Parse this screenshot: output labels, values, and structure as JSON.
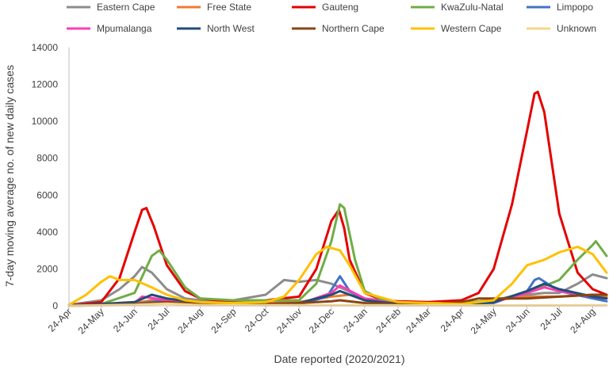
{
  "chart_data": {
    "type": "line",
    "title": "",
    "xlabel": "Date reported (2020/2021)",
    "ylabel": "7-day moving average no. of new daily cases",
    "ylim": [
      0,
      14000
    ],
    "yticks": [
      0,
      2000,
      4000,
      6000,
      8000,
      10000,
      12000,
      14000
    ],
    "xlim": [
      "2020-04-24",
      "2021-09-06"
    ],
    "x_ticks": [
      {
        "date": "2020-04-24",
        "label": "24-Apr"
      },
      {
        "date": "2020-05-24",
        "label": "24-May"
      },
      {
        "date": "2020-06-24",
        "label": "24-Jun"
      },
      {
        "date": "2020-07-24",
        "label": "24-Jul"
      },
      {
        "date": "2020-08-24",
        "label": "24-Aug"
      },
      {
        "date": "2020-09-24",
        "label": "24-Sep"
      },
      {
        "date": "2020-10-24",
        "label": "24-Oct"
      },
      {
        "date": "2020-11-24",
        "label": "24-Nov"
      },
      {
        "date": "2020-12-24",
        "label": "24-Dec"
      },
      {
        "date": "2021-01-24",
        "label": "24-Jan"
      },
      {
        "date": "2021-02-24",
        "label": "24-Feb"
      },
      {
        "date": "2021-03-24",
        "label": "24-Mar"
      },
      {
        "date": "2021-04-24",
        "label": "24-Apr"
      },
      {
        "date": "2021-05-24",
        "label": "24-May"
      },
      {
        "date": "2021-06-24",
        "label": "24-Jun"
      },
      {
        "date": "2021-07-24",
        "label": "24-Jul"
      },
      {
        "date": "2021-08-24",
        "label": "24-Aug"
      }
    ],
    "grid": false,
    "legend_position": "top",
    "series": [
      {
        "name": "Eastern Cape",
        "color": "#8c8c8c",
        "x": [
          "2020-04-24",
          "2020-05-24",
          "2020-06-10",
          "2020-06-24",
          "2020-07-01",
          "2020-07-10",
          "2020-07-24",
          "2020-08-10",
          "2020-08-24",
          "2020-09-24",
          "2020-10-24",
          "2020-11-10",
          "2020-11-24",
          "2020-12-10",
          "2020-12-24",
          "2021-01-05",
          "2021-01-24",
          "2021-02-24",
          "2021-03-24",
          "2021-04-24",
          "2021-05-24",
          "2021-06-24",
          "2021-07-10",
          "2021-07-24",
          "2021-08-10",
          "2021-08-24",
          "2021-09-06"
        ],
        "y": [
          50,
          300,
          900,
          1600,
          2100,
          1800,
          900,
          400,
          300,
          300,
          600,
          1400,
          1300,
          1400,
          1200,
          900,
          400,
          200,
          150,
          150,
          300,
          600,
          700,
          700,
          1200,
          1700,
          1500
        ]
      },
      {
        "name": "Free State",
        "color": "#ed7d31",
        "x": [
          "2020-04-24",
          "2020-06-10",
          "2020-06-24",
          "2020-07-10",
          "2020-07-24",
          "2020-08-24",
          "2020-09-24",
          "2020-10-24",
          "2020-11-24",
          "2020-12-24",
          "2021-01-10",
          "2021-01-24",
          "2021-02-24",
          "2021-03-24",
          "2021-04-24",
          "2021-05-24",
          "2021-06-24",
          "2021-07-24",
          "2021-08-24",
          "2021-09-06"
        ],
        "y": [
          0,
          50,
          150,
          300,
          250,
          100,
          100,
          150,
          200,
          500,
          600,
          300,
          100,
          80,
          150,
          300,
          500,
          500,
          600,
          500
        ]
      },
      {
        "name": "Gauteng",
        "color": "#e50000",
        "x": [
          "2020-04-24",
          "2020-05-24",
          "2020-06-10",
          "2020-06-24",
          "2020-07-01",
          "2020-07-05",
          "2020-07-12",
          "2020-07-24",
          "2020-08-10",
          "2020-08-24",
          "2020-09-24",
          "2020-10-24",
          "2020-11-24",
          "2020-12-10",
          "2020-12-24",
          "2020-12-31",
          "2021-01-05",
          "2021-01-10",
          "2021-01-24",
          "2021-02-10",
          "2021-02-24",
          "2021-03-24",
          "2021-04-24",
          "2021-05-10",
          "2021-05-24",
          "2021-06-10",
          "2021-06-24",
          "2021-07-01",
          "2021-07-04",
          "2021-07-10",
          "2021-07-24",
          "2021-08-10",
          "2021-08-24",
          "2021-09-06"
        ],
        "y": [
          30,
          200,
          1500,
          4000,
          5200,
          5300,
          4300,
          2200,
          800,
          400,
          200,
          300,
          500,
          2000,
          4600,
          5200,
          4200,
          2500,
          700,
          300,
          250,
          200,
          300,
          700,
          2000,
          5500,
          9500,
          11500,
          11600,
          10500,
          5000,
          1800,
          900,
          600
        ]
      },
      {
        "name": "KwaZulu-Natal",
        "color": "#70ad47",
        "x": [
          "2020-04-24",
          "2020-05-24",
          "2020-06-24",
          "2020-07-10",
          "2020-07-17",
          "2020-07-24",
          "2020-08-10",
          "2020-08-24",
          "2020-09-24",
          "2020-10-24",
          "2020-11-24",
          "2020-12-10",
          "2020-12-24",
          "2021-01-01",
          "2021-01-05",
          "2021-01-15",
          "2021-01-24",
          "2021-02-10",
          "2021-02-24",
          "2021-03-24",
          "2021-04-24",
          "2021-05-24",
          "2021-06-24",
          "2021-07-24",
          "2021-08-10",
          "2021-08-24",
          "2021-08-27",
          "2021-09-06"
        ],
        "y": [
          20,
          100,
          700,
          2700,
          3000,
          2500,
          1000,
          400,
          300,
          300,
          300,
          1200,
          3500,
          5500,
          5300,
          2500,
          800,
          300,
          200,
          150,
          150,
          300,
          700,
          1400,
          2500,
          3300,
          3500,
          2700
        ]
      },
      {
        "name": "Limpopo",
        "color": "#4472c4",
        "x": [
          "2020-04-24",
          "2020-06-24",
          "2020-07-24",
          "2020-08-24",
          "2020-09-24",
          "2020-10-24",
          "2020-11-24",
          "2020-12-20",
          "2021-01-01",
          "2021-01-10",
          "2021-01-24",
          "2021-02-24",
          "2021-03-24",
          "2021-04-24",
          "2021-05-24",
          "2021-06-24",
          "2021-07-01",
          "2021-07-05",
          "2021-07-24",
          "2021-08-24",
          "2021-09-06"
        ],
        "y": [
          0,
          100,
          300,
          150,
          60,
          40,
          80,
          500,
          1600,
          800,
          300,
          100,
          50,
          50,
          150,
          800,
          1400,
          1500,
          800,
          400,
          250
        ]
      },
      {
        "name": "Mpumalanga",
        "color": "#ff3cb4",
        "x": [
          "2020-04-24",
          "2020-06-24",
          "2020-07-01",
          "2020-07-24",
          "2020-08-24",
          "2020-09-24",
          "2020-10-24",
          "2020-11-24",
          "2020-12-24",
          "2021-01-01",
          "2021-01-24",
          "2021-02-24",
          "2021-03-24",
          "2021-04-24",
          "2021-05-24",
          "2021-06-24",
          "2021-07-10",
          "2021-07-24",
          "2021-08-24",
          "2021-09-06"
        ],
        "y": [
          0,
          150,
          500,
          300,
          100,
          50,
          50,
          100,
          700,
          1100,
          400,
          100,
          50,
          50,
          200,
          700,
          1000,
          800,
          500,
          400
        ]
      },
      {
        "name": "North West",
        "color": "#1f4e79",
        "x": [
          "2020-04-24",
          "2020-06-24",
          "2020-07-10",
          "2020-07-24",
          "2020-08-24",
          "2020-09-24",
          "2020-10-24",
          "2020-11-24",
          "2020-12-24",
          "2021-01-01",
          "2021-01-24",
          "2021-02-24",
          "2021-03-24",
          "2021-04-24",
          "2021-05-24",
          "2021-06-24",
          "2021-07-10",
          "2021-07-24",
          "2021-08-24",
          "2021-09-06"
        ],
        "y": [
          0,
          200,
          600,
          400,
          150,
          100,
          100,
          150,
          600,
          800,
          300,
          100,
          50,
          50,
          200,
          800,
          1200,
          900,
          500,
          400
        ]
      },
      {
        "name": "Northern Cape",
        "color": "#8b4513",
        "x": [
          "2020-04-24",
          "2020-06-24",
          "2020-07-24",
          "2020-08-24",
          "2020-09-24",
          "2020-10-24",
          "2020-11-24",
          "2020-12-24",
          "2021-01-01",
          "2021-01-24",
          "2021-02-24",
          "2021-03-24",
          "2021-04-24",
          "2021-05-10",
          "2021-05-24",
          "2021-06-24",
          "2021-07-24",
          "2021-08-24",
          "2021-09-06"
        ],
        "y": [
          0,
          100,
          200,
          100,
          50,
          100,
          150,
          250,
          300,
          150,
          80,
          100,
          200,
          400,
          400,
          400,
          500,
          600,
          600
        ]
      },
      {
        "name": "Western Cape",
        "color": "#ffc000",
        "x": [
          "2020-04-24",
          "2020-05-10",
          "2020-05-24",
          "2020-06-01",
          "2020-06-10",
          "2020-06-24",
          "2020-07-10",
          "2020-07-24",
          "2020-08-10",
          "2020-08-24",
          "2020-09-24",
          "2020-10-24",
          "2020-11-10",
          "2020-11-24",
          "2020-12-10",
          "2020-12-20",
          "2021-01-01",
          "2021-01-10",
          "2021-01-24",
          "2021-02-24",
          "2021-03-24",
          "2021-04-24",
          "2021-05-24",
          "2021-06-10",
          "2021-06-24",
          "2021-07-10",
          "2021-07-24",
          "2021-08-10",
          "2021-08-24",
          "2021-09-06"
        ],
        "y": [
          50,
          600,
          1300,
          1600,
          1400,
          1400,
          1000,
          600,
          300,
          200,
          150,
          200,
          500,
          1400,
          2800,
          3200,
          3000,
          2200,
          700,
          200,
          150,
          100,
          300,
          1200,
          2200,
          2500,
          2900,
          3200,
          2800,
          1800
        ]
      },
      {
        "name": "Unknown",
        "color": "#f5d58a",
        "x": [
          "2020-04-24",
          "2020-06-24",
          "2020-07-24",
          "2020-08-24",
          "2021-05-24",
          "2021-09-06"
        ],
        "y": [
          0,
          50,
          120,
          40,
          20,
          30
        ]
      }
    ]
  }
}
